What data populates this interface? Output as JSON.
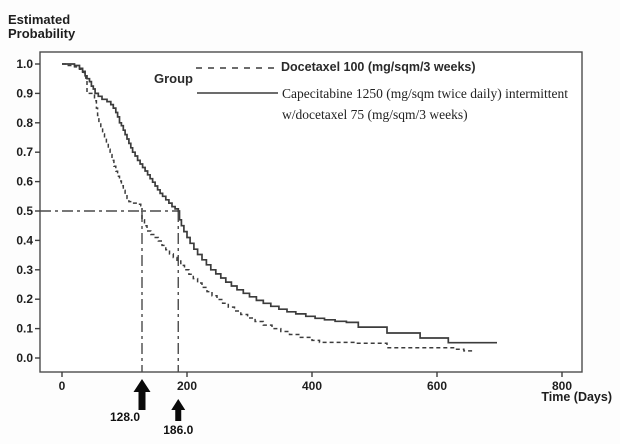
{
  "page": {
    "background": "#fdfdfd"
  },
  "y_axis_title_line1": "Estimated",
  "y_axis_title_line2": "Probability",
  "x_axis_title": "Time (Days)",
  "legend": {
    "title": "Group",
    "items": [
      {
        "label": "Docetaxel 100 (mg/sqm/3 weeks)",
        "style": "dashed"
      },
      {
        "label_line1": "Capecitabine 1250 (mg/sqm twice daily) intermittent",
        "label_line2": "w/docetaxel 75 (mg/sqm/3 weeks)",
        "style": "solid"
      }
    ]
  },
  "chart_data": {
    "type": "line",
    "subtype": "kaplan-meier-step",
    "title": "",
    "xlabel": "Time (Days)",
    "ylabel": "Estimated Probability",
    "xlim": [
      0,
      800
    ],
    "ylim": [
      0.0,
      1.0
    ],
    "grid": false,
    "legend_position": "top-right-inside",
    "xticks": [
      {
        "v": 0,
        "label": "0"
      },
      {
        "v": 200,
        "label": "200"
      },
      {
        "v": 400,
        "label": "400"
      },
      {
        "v": 600,
        "label": "600"
      },
      {
        "v": 800,
        "label": "800"
      }
    ],
    "yticks": [
      {
        "v": 1.0,
        "label": "1.0"
      },
      {
        "v": 0.9,
        "label": "0.9"
      },
      {
        "v": 0.8,
        "label": "0.8"
      },
      {
        "v": 0.7,
        "label": "0.7"
      },
      {
        "v": 0.6,
        "label": "0.6"
      },
      {
        "v": 0.5,
        "label": "0.5"
      },
      {
        "v": 0.4,
        "label": "0.4"
      },
      {
        "v": 0.3,
        "label": "0.3"
      },
      {
        "v": 0.2,
        "label": "0.2"
      },
      {
        "v": 0.1,
        "label": "0.1"
      },
      {
        "v": 0.0,
        "label": "0.0"
      }
    ],
    "reference": {
      "probability": 0.5,
      "h_line_from_x": 0,
      "h_line_to_x": 186,
      "v_lines_x": [
        128,
        186
      ]
    },
    "medians": [
      {
        "x": 128,
        "label": "128.0",
        "arrow_size": "large"
      },
      {
        "x": 186,
        "label": "186.0",
        "arrow_size": "small"
      }
    ],
    "series": [
      {
        "name": "Docetaxel 100 (mg/sqm/3 weeks)",
        "style": "dashed",
        "points": [
          [
            0,
            1.0
          ],
          [
            10,
            0.995
          ],
          [
            20,
            0.99
          ],
          [
            28,
            0.982
          ],
          [
            33,
            0.972
          ],
          [
            36,
            0.962
          ],
          [
            38,
            0.952
          ],
          [
            40,
            0.9
          ],
          [
            50,
            0.898
          ],
          [
            52,
            0.875
          ],
          [
            55,
            0.85
          ],
          [
            57,
            0.825
          ],
          [
            59,
            0.8
          ],
          [
            62,
            0.785
          ],
          [
            65,
            0.762
          ],
          [
            68,
            0.748
          ],
          [
            71,
            0.73
          ],
          [
            74,
            0.71
          ],
          [
            77,
            0.692
          ],
          [
            80,
            0.672
          ],
          [
            83,
            0.652
          ],
          [
            86,
            0.635
          ],
          [
            89,
            0.618
          ],
          [
            92,
            0.602
          ],
          [
            95,
            0.586
          ],
          [
            98,
            0.57
          ],
          [
            101,
            0.556
          ],
          [
            104,
            0.543
          ],
          [
            107,
            0.532
          ],
          [
            111,
            0.527
          ],
          [
            120,
            0.523
          ],
          [
            126,
            0.518
          ],
          [
            128,
            0.47
          ],
          [
            132,
            0.45
          ],
          [
            136,
            0.432
          ],
          [
            142,
            0.42
          ],
          [
            148,
            0.41
          ],
          [
            154,
            0.398
          ],
          [
            160,
            0.383
          ],
          [
            166,
            0.368
          ],
          [
            172,
            0.354
          ],
          [
            178,
            0.342
          ],
          [
            184,
            0.33
          ],
          [
            190,
            0.315
          ],
          [
            196,
            0.3
          ],
          [
            203,
            0.285
          ],
          [
            210,
            0.27
          ],
          [
            217,
            0.255
          ],
          [
            224,
            0.24
          ],
          [
            232,
            0.226
          ],
          [
            240,
            0.212
          ],
          [
            248,
            0.199
          ],
          [
            257,
            0.186
          ],
          [
            266,
            0.173
          ],
          [
            276,
            0.16
          ],
          [
            286,
            0.148
          ],
          [
            297,
            0.136
          ],
          [
            309,
            0.124
          ],
          [
            322,
            0.112
          ],
          [
            336,
            0.1
          ],
          [
            350,
            0.09
          ],
          [
            364,
            0.08
          ],
          [
            380,
            0.07
          ],
          [
            400,
            0.06
          ],
          [
            412,
            0.053
          ],
          [
            470,
            0.05
          ],
          [
            520,
            0.035
          ],
          [
            630,
            0.03
          ],
          [
            643,
            0.024
          ],
          [
            658,
            0.024
          ]
        ]
      },
      {
        "name": "Capecitabine 1250 (mg/sqm twice daily) intermittent w/docetaxel 75 (mg/sqm/3 weeks)",
        "style": "solid",
        "points": [
          [
            0,
            1.0
          ],
          [
            20,
            0.995
          ],
          [
            28,
            0.985
          ],
          [
            33,
            0.975
          ],
          [
            37,
            0.96
          ],
          [
            40,
            0.95
          ],
          [
            44,
            0.94
          ],
          [
            47,
            0.925
          ],
          [
            50,
            0.915
          ],
          [
            53,
            0.9
          ],
          [
            58,
            0.89
          ],
          [
            64,
            0.88
          ],
          [
            72,
            0.872
          ],
          [
            78,
            0.862
          ],
          [
            82,
            0.85
          ],
          [
            86,
            0.835
          ],
          [
            89,
            0.82
          ],
          [
            92,
            0.8
          ],
          [
            95,
            0.79
          ],
          [
            98,
            0.775
          ],
          [
            101,
            0.76
          ],
          [
            104,
            0.745
          ],
          [
            107,
            0.73
          ],
          [
            110,
            0.715
          ],
          [
            113,
            0.7
          ],
          [
            117,
            0.687
          ],
          [
            121,
            0.672
          ],
          [
            125,
            0.66
          ],
          [
            129,
            0.648
          ],
          [
            133,
            0.636
          ],
          [
            137,
            0.623
          ],
          [
            141,
            0.61
          ],
          [
            145,
            0.598
          ],
          [
            149,
            0.585
          ],
          [
            153,
            0.572
          ],
          [
            157,
            0.56
          ],
          [
            161,
            0.55
          ],
          [
            166,
            0.538
          ],
          [
            171,
            0.527
          ],
          [
            176,
            0.515
          ],
          [
            181,
            0.507
          ],
          [
            186,
            0.5
          ],
          [
            188,
            0.47
          ],
          [
            191,
            0.45
          ],
          [
            195,
            0.43
          ],
          [
            200,
            0.41
          ],
          [
            205,
            0.39
          ],
          [
            211,
            0.37
          ],
          [
            217,
            0.352
          ],
          [
            224,
            0.334
          ],
          [
            231,
            0.317
          ],
          [
            238,
            0.3
          ],
          [
            246,
            0.286
          ],
          [
            254,
            0.272
          ],
          [
            262,
            0.258
          ],
          [
            271,
            0.245
          ],
          [
            280,
            0.232
          ],
          [
            290,
            0.22
          ],
          [
            300,
            0.208
          ],
          [
            311,
            0.196
          ],
          [
            322,
            0.186
          ],
          [
            334,
            0.176
          ],
          [
            347,
            0.166
          ],
          [
            360,
            0.157
          ],
          [
            374,
            0.15
          ],
          [
            390,
            0.142
          ],
          [
            405,
            0.135
          ],
          [
            420,
            0.13
          ],
          [
            437,
            0.125
          ],
          [
            455,
            0.121
          ],
          [
            474,
            0.105
          ],
          [
            520,
            0.085
          ],
          [
            573,
            0.068
          ],
          [
            618,
            0.052
          ],
          [
            696,
            0.052
          ]
        ]
      }
    ]
  }
}
